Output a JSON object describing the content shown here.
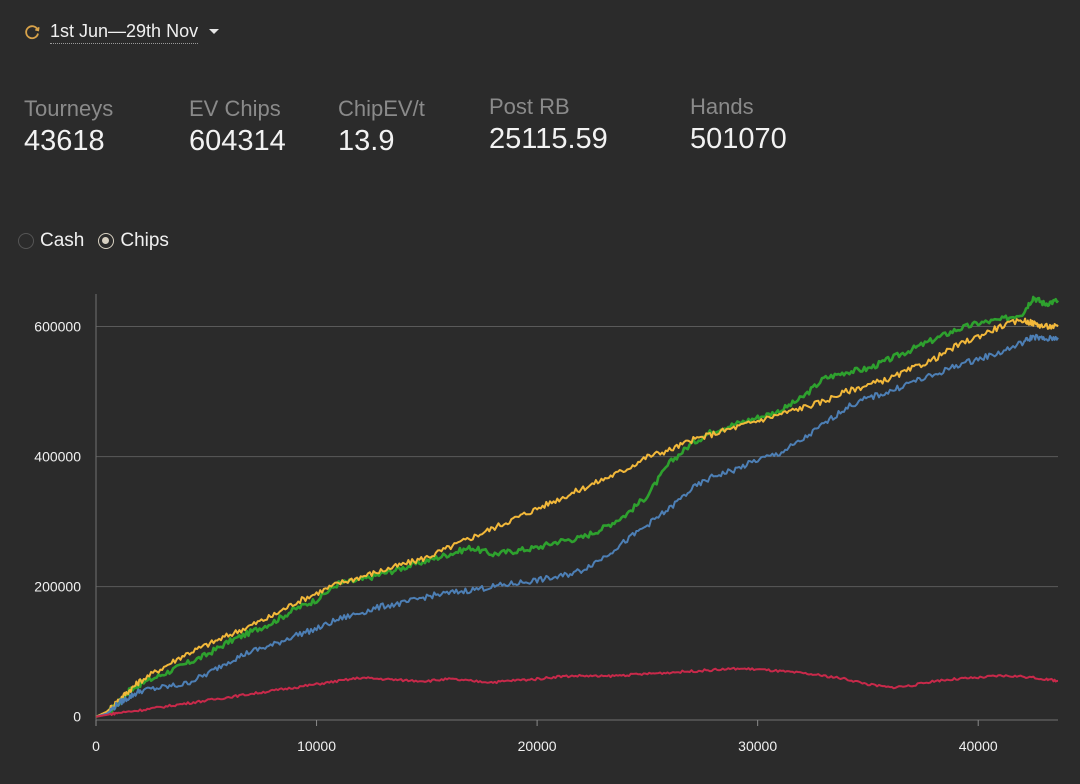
{
  "header": {
    "date_range": "1st Jun—29th Nov"
  },
  "stats": [
    {
      "label": "Tourneys",
      "value": "43618"
    },
    {
      "label": "EV Chips",
      "value": "604314"
    },
    {
      "label": "ChipEV/t",
      "value": "13.9"
    },
    {
      "label": "Post RB",
      "value": "25115.59"
    },
    {
      "label": "Hands",
      "value": "501070"
    }
  ],
  "mode": {
    "options": [
      "Cash",
      "Chips"
    ],
    "selected": "Chips"
  },
  "colors": {
    "background": "#2b2b2b",
    "green": "#2ea12e",
    "yellow": "#f2b83a",
    "blue": "#4d7fb5",
    "red": "#c8294a",
    "refresh_icon": "#d9a34a"
  },
  "chart_data": {
    "type": "line",
    "x_ticks": [
      0,
      10000,
      20000,
      30000,
      40000
    ],
    "y_ticks": [
      0,
      200000,
      400000,
      600000
    ],
    "xlim": [
      0,
      43618
    ],
    "ylim": [
      -5000,
      650000
    ],
    "grid": "horizontal",
    "series": [
      {
        "color": "#2ea12e",
        "x": [
          0,
          500,
          1000,
          1500,
          2000,
          3000,
          4000,
          5000,
          6000,
          7000,
          8000,
          9000,
          10000,
          11000,
          12000,
          13000,
          14000,
          15000,
          16000,
          17000,
          18000,
          19000,
          20000,
          21000,
          22000,
          23000,
          24000,
          25000,
          26000,
          27000,
          28000,
          29000,
          30000,
          31000,
          32000,
          33000,
          34000,
          35000,
          36000,
          37000,
          38000,
          39000,
          40000,
          41000,
          42000,
          42500,
          43000,
          43618
        ],
        "y": [
          0,
          5000,
          20000,
          40000,
          50000,
          65000,
          80000,
          95000,
          115000,
          130000,
          145000,
          165000,
          180000,
          205000,
          210000,
          220000,
          230000,
          240000,
          250000,
          260000,
          250000,
          255000,
          260000,
          270000,
          275000,
          290000,
          310000,
          340000,
          390000,
          420000,
          440000,
          450000,
          460000,
          470000,
          490000,
          520000,
          530000,
          535000,
          550000,
          565000,
          580000,
          595000,
          605000,
          610000,
          620000,
          645000,
          635000,
          640000
        ]
      },
      {
        "color": "#f2b83a",
        "x": [
          0,
          500,
          1000,
          1500,
          2000,
          3000,
          4000,
          5000,
          6000,
          7000,
          8000,
          9000,
          10000,
          11000,
          12000,
          13000,
          14000,
          15000,
          16000,
          17000,
          18000,
          19000,
          20000,
          21000,
          22000,
          23000,
          24000,
          25000,
          26000,
          27000,
          28000,
          29000,
          30000,
          31000,
          32000,
          33000,
          34000,
          35000,
          36000,
          37000,
          38000,
          39000,
          40000,
          41000,
          42000,
          42500,
          43000,
          43618
        ],
        "y": [
          0,
          8000,
          25000,
          40000,
          55000,
          75000,
          95000,
          110000,
          125000,
          140000,
          155000,
          175000,
          190000,
          205000,
          215000,
          225000,
          235000,
          245000,
          260000,
          275000,
          290000,
          305000,
          320000,
          335000,
          350000,
          365000,
          380000,
          400000,
          410000,
          425000,
          435000,
          445000,
          455000,
          465000,
          475000,
          485000,
          500000,
          510000,
          520000,
          535000,
          550000,
          570000,
          585000,
          600000,
          610000,
          605000,
          600000,
          600000
        ]
      },
      {
        "color": "#4d7fb5",
        "x": [
          0,
          500,
          1000,
          1500,
          2000,
          3000,
          4000,
          5000,
          6000,
          7000,
          8000,
          9000,
          10000,
          11000,
          12000,
          13000,
          14000,
          15000,
          16000,
          17000,
          18000,
          19000,
          20000,
          21000,
          22000,
          23000,
          24000,
          25000,
          26000,
          27000,
          28000,
          29000,
          30000,
          31000,
          32000,
          33000,
          34000,
          35000,
          36000,
          37000,
          38000,
          39000,
          40000,
          41000,
          42000,
          42500,
          43000,
          43618
        ],
        "y": [
          0,
          5000,
          20000,
          30000,
          40000,
          45000,
          50000,
          65000,
          85000,
          100000,
          110000,
          125000,
          135000,
          150000,
          160000,
          170000,
          175000,
          185000,
          190000,
          195000,
          200000,
          205000,
          210000,
          215000,
          225000,
          245000,
          270000,
          295000,
          320000,
          350000,
          370000,
          380000,
          395000,
          405000,
          425000,
          450000,
          475000,
          490000,
          500000,
          515000,
          525000,
          540000,
          550000,
          560000,
          575000,
          585000,
          580000,
          583000
        ]
      },
      {
        "color": "#c8294a",
        "x": [
          0,
          500,
          1000,
          2000,
          3000,
          4000,
          5000,
          6000,
          7000,
          8000,
          9000,
          10000,
          11000,
          12000,
          13000,
          14000,
          15000,
          16000,
          17000,
          18000,
          19000,
          20000,
          21000,
          22000,
          23000,
          24000,
          25000,
          26000,
          27000,
          28000,
          29000,
          30000,
          31000,
          32000,
          33000,
          34000,
          35000,
          36000,
          37000,
          38000,
          39000,
          40000,
          41000,
          42000,
          43000,
          43618
        ],
        "y": [
          0,
          3000,
          6000,
          10000,
          15000,
          20000,
          25000,
          30000,
          35000,
          40000,
          45000,
          50000,
          55000,
          60000,
          58000,
          56000,
          55000,
          58000,
          55000,
          53000,
          56000,
          58000,
          62000,
          63000,
          62000,
          64000,
          66000,
          68000,
          70000,
          72000,
          74000,
          73000,
          70000,
          67000,
          63000,
          58000,
          50000,
          45000,
          48000,
          55000,
          58000,
          60000,
          63000,
          62000,
          58000,
          55000
        ]
      }
    ]
  }
}
